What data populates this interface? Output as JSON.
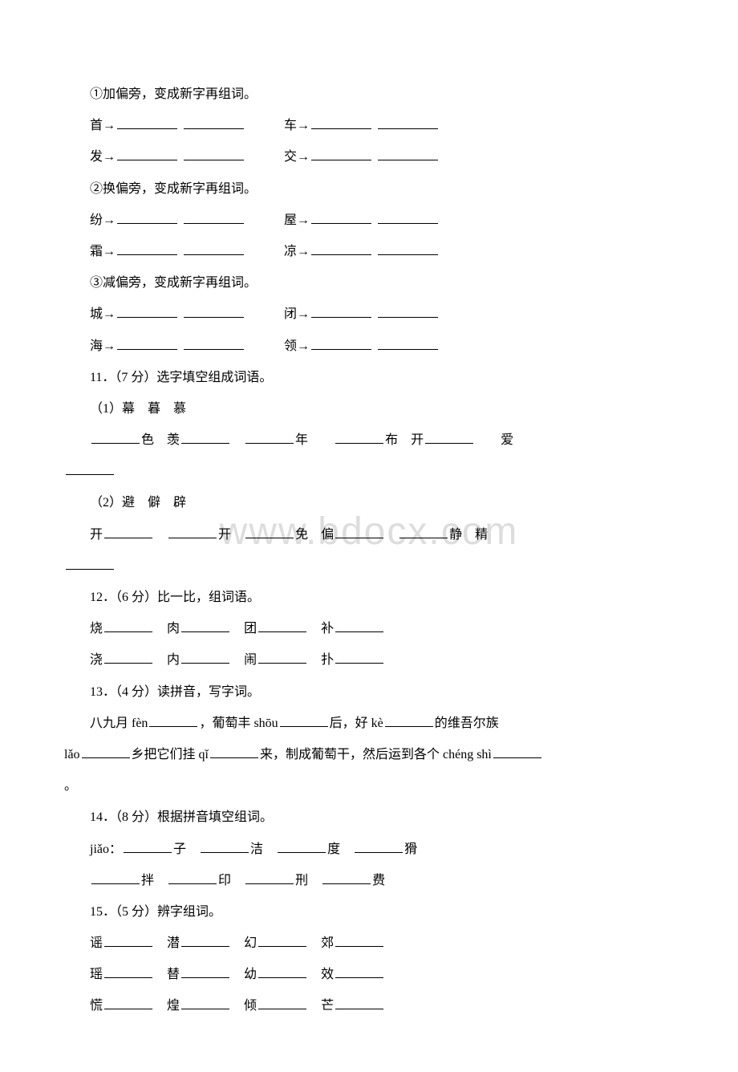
{
  "watermark": "www.bdocx.com",
  "q10": {
    "instr1": "①加偏旁，变成新字再组词。",
    "r1a": "首→",
    "r1b": "车→",
    "r2a": "发→",
    "r2b": "交→",
    "instr2": "②换偏旁，变成新字再组词。",
    "r3a": "纷→",
    "r3b": "屋→",
    "r4a": "霜→",
    "r4b": "凉→",
    "instr3": "③减偏旁，变成新字再组词。",
    "r5a": "城→",
    "r5b": "闭→",
    "r6a": "海→",
    "r6b": "领→"
  },
  "q11": {
    "title": "11．（7 分）选字填空组成词语。",
    "g1": "（1）幕　暮　慕",
    "g1_items": [
      "色　羡",
      "年",
      "布　开",
      "爱"
    ],
    "g2": "（2）避　僻　辟",
    "g2_items_a": "开",
    "g2_items_b": "开",
    "g2_items_c": "免　偏",
    "g2_items_d": "静　精"
  },
  "q12": {
    "title": "12．（6 分）比一比，组词语。",
    "r1": [
      "烧",
      "肉",
      "团",
      "补"
    ],
    "r2": [
      "浇",
      "内",
      "闹",
      "扑"
    ]
  },
  "q13": {
    "title": "13．（4 分）读拼音，写字词。",
    "text_a": "八九月 fèn",
    "text_b": "，葡萄丰 shōu",
    "text_c": "后，好 kè",
    "text_d": "的维吾尔族",
    "text_e": "lǎo",
    "text_f": "乡把它们挂 qǐ",
    "text_g": "来，制成葡萄干，然后运到各个 chéng  shì",
    "text_h": "。"
  },
  "q14": {
    "title": "14．（8 分）根据拼音填空组词。",
    "r1_prefix": "jiǎo：",
    "r1": [
      "子",
      "洁",
      "度",
      "猾"
    ],
    "r2": [
      "拌",
      "印",
      "刑",
      "费"
    ]
  },
  "q15": {
    "title": "15．（5 分）辨字组词。",
    "r1": [
      "谣",
      "潜",
      "幻",
      "郊"
    ],
    "r2": [
      "瑶",
      "替",
      "幼",
      "效"
    ],
    "r3": [
      "慌",
      "煌",
      "倾",
      "芒"
    ]
  }
}
